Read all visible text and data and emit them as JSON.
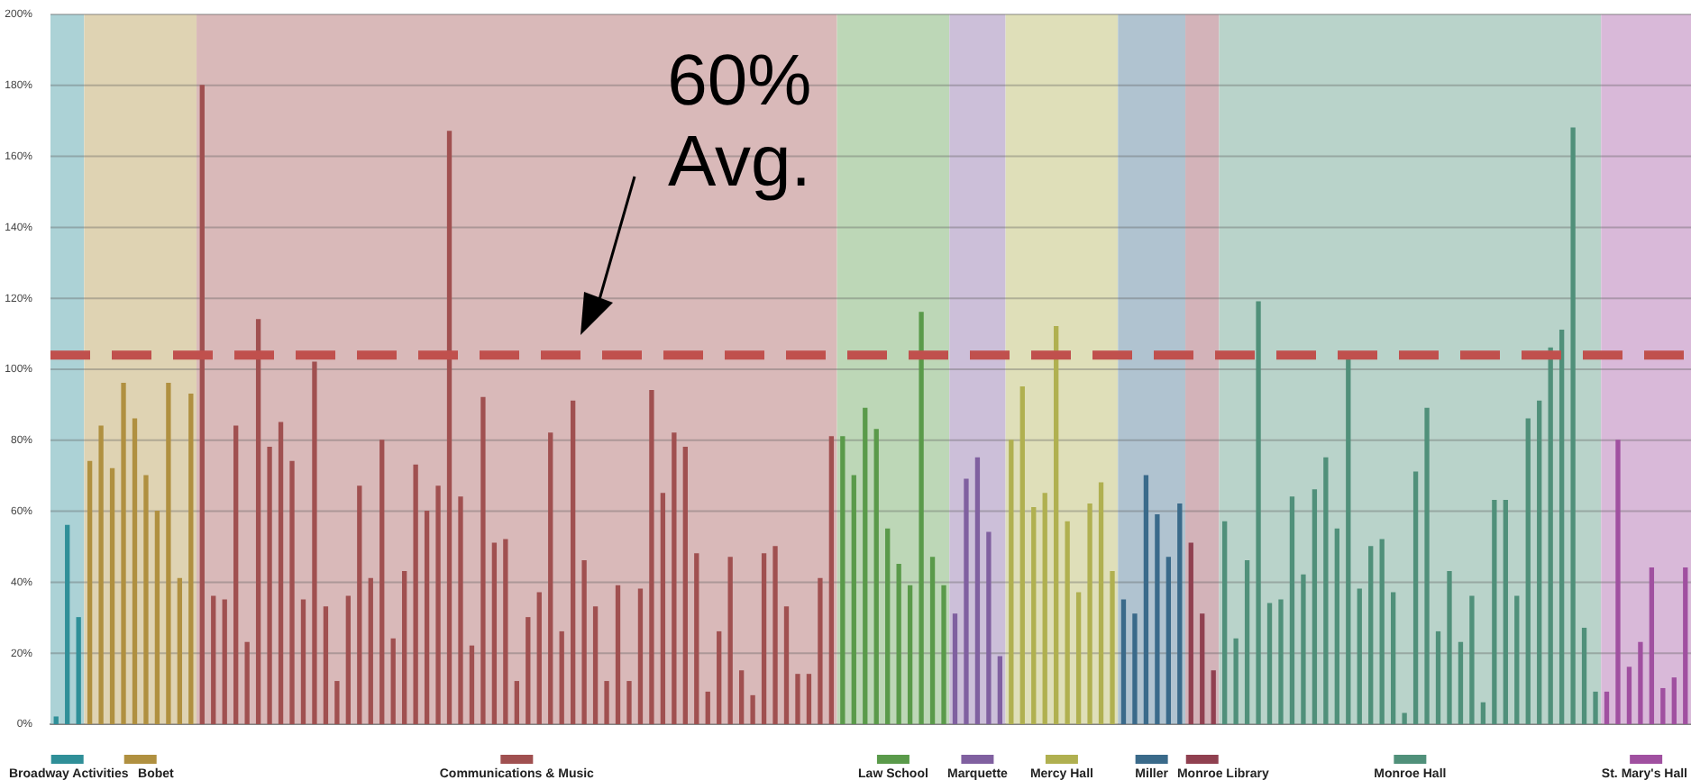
{
  "chart_data": {
    "type": "bar",
    "categories": [
      null,
      null,
      null,
      null,
      null,
      null,
      null,
      null,
      null,
      null,
      null,
      null,
      null,
      null,
      null,
      null,
      null,
      null,
      null,
      null,
      null,
      null,
      null,
      null,
      null,
      null,
      null,
      null,
      null,
      null,
      null,
      null,
      null,
      null,
      null,
      null,
      null,
      null,
      null,
      null,
      null,
      null,
      null,
      null,
      null,
      null,
      null,
      null,
      null,
      null,
      null,
      null,
      null,
      null,
      null,
      null,
      null,
      null,
      null,
      null,
      null,
      null,
      null,
      null,
      null,
      null,
      null,
      null,
      null,
      null,
      null,
      null,
      null,
      null,
      null,
      null,
      null,
      null,
      null,
      null,
      null,
      null,
      null,
      null,
      null,
      null,
      null,
      null,
      null,
      null,
      null,
      null,
      null,
      null,
      null,
      null,
      null,
      null,
      null,
      null,
      null,
      null,
      null,
      null,
      null,
      null,
      null,
      null,
      null,
      null,
      null,
      null,
      null,
      null,
      null,
      null,
      null,
      null,
      null,
      null,
      null,
      null,
      null,
      null,
      null,
      null,
      null,
      null,
      null,
      null,
      null,
      null,
      null,
      null,
      null,
      null,
      null,
      null,
      null,
      null,
      null,
      null,
      null,
      null,
      null,
      null
    ],
    "stacked": true,
    "legend": "bottom",
    "series": [
      {
        "name": "Broadway Activities",
        "color": "#2f8f98",
        "values": [
          2,
          56,
          30,
          null,
          null,
          null,
          null,
          null,
          null,
          null,
          null,
          null,
          null,
          null,
          null,
          null,
          null,
          null,
          null,
          null,
          null,
          null,
          null,
          null,
          null,
          null,
          null,
          null,
          null,
          null,
          null,
          null,
          null,
          null,
          null,
          null,
          null,
          null,
          null,
          null,
          null,
          null,
          null,
          null,
          null,
          null,
          null,
          null,
          null,
          null,
          null,
          null,
          null,
          null,
          null,
          null,
          null,
          null,
          null,
          null,
          null,
          null,
          null,
          null,
          null,
          null,
          null,
          null,
          null,
          null,
          null,
          null,
          null,
          null,
          null,
          null,
          null,
          null,
          null,
          null,
          null,
          null,
          null,
          null,
          null,
          null,
          null,
          null,
          null,
          null,
          null,
          null,
          null,
          null,
          null,
          null,
          null,
          null,
          null,
          null,
          null,
          null,
          null,
          null,
          null,
          null,
          null,
          null,
          null,
          null,
          null,
          null,
          null,
          null,
          null,
          null,
          null,
          null,
          null,
          null,
          null,
          null,
          null,
          null,
          null,
          null,
          null,
          null,
          null,
          null,
          null,
          null,
          null,
          null,
          null,
          null,
          null,
          null,
          null,
          null,
          null,
          null,
          null,
          null,
          null,
          null
        ]
      },
      {
        "name": "Bobet",
        "color": "#b09040",
        "values": [
          null,
          null,
          null,
          74,
          84,
          72,
          96,
          86,
          70,
          60,
          96,
          41,
          93,
          null,
          null,
          null,
          null,
          null,
          null,
          null,
          null,
          null,
          null,
          null,
          null,
          null,
          null,
          null,
          null,
          null,
          null,
          null,
          null,
          null,
          null,
          null,
          null,
          null,
          null,
          null,
          null,
          null,
          null,
          null,
          null,
          null,
          null,
          null,
          null,
          null,
          null,
          null,
          null,
          null,
          null,
          null,
          null,
          null,
          null,
          null,
          null,
          null,
          null,
          null,
          null,
          null,
          null,
          null,
          null,
          null,
          null,
          null,
          null,
          null,
          null,
          null,
          null,
          null,
          null,
          null,
          null,
          null,
          null,
          null,
          null,
          null,
          null,
          null,
          null,
          null,
          null,
          null,
          null,
          null,
          null,
          null,
          null,
          null,
          null,
          null,
          null,
          null,
          null,
          null,
          null,
          null,
          null,
          null,
          null,
          null,
          null,
          null,
          null,
          null,
          null,
          null,
          null,
          null,
          null,
          null,
          null,
          null,
          null,
          null,
          null,
          null,
          null,
          null,
          null,
          null,
          null,
          null,
          null,
          null,
          null,
          null,
          null,
          null,
          null,
          null,
          null,
          null,
          null,
          null,
          null,
          null
        ]
      },
      {
        "name": "Communications & Music",
        "color": "#a05050",
        "values": [
          null,
          null,
          null,
          null,
          null,
          null,
          null,
          null,
          null,
          null,
          null,
          null,
          null,
          180,
          36,
          35,
          84,
          23,
          114,
          78,
          85,
          74,
          35,
          102,
          33,
          12,
          36,
          67,
          41,
          80,
          24,
          43,
          73,
          60,
          67,
          167,
          64,
          22,
          92,
          51,
          52,
          12,
          30,
          37,
          82,
          26,
          91,
          46,
          33,
          12,
          39,
          12,
          38,
          94,
          65,
          82,
          78,
          48,
          9,
          26,
          47,
          15,
          8,
          48,
          50,
          33,
          14,
          14,
          41,
          81,
          null,
          null,
          null,
          null,
          null,
          null,
          null,
          null,
          null,
          null,
          null,
          null,
          null,
          null,
          null,
          null,
          null,
          null,
          null,
          null,
          null,
          null,
          null,
          null,
          null,
          null,
          null,
          null,
          null,
          null,
          null,
          null,
          null,
          null,
          null,
          null,
          null,
          null,
          null,
          null,
          null,
          null,
          null,
          null,
          null,
          null,
          null,
          null,
          null,
          null,
          null,
          null,
          null,
          null,
          null,
          null,
          null,
          null,
          null,
          null,
          null,
          null,
          null,
          null,
          null,
          null,
          null,
          null,
          null,
          null,
          null,
          null,
          null,
          null,
          null,
          null
        ]
      },
      {
        "name": "Law School",
        "color": "#5a9a4a",
        "values": [
          null,
          null,
          null,
          null,
          null,
          null,
          null,
          null,
          null,
          null,
          null,
          null,
          null,
          null,
          null,
          null,
          null,
          null,
          null,
          null,
          null,
          null,
          null,
          null,
          null,
          null,
          null,
          null,
          null,
          null,
          null,
          null,
          null,
          null,
          null,
          null,
          null,
          null,
          null,
          null,
          null,
          null,
          null,
          null,
          null,
          null,
          null,
          null,
          null,
          null,
          null,
          null,
          null,
          null,
          null,
          null,
          null,
          null,
          null,
          null,
          null,
          null,
          null,
          null,
          null,
          null,
          null,
          null,
          null,
          null,
          81,
          70,
          89,
          83,
          55,
          45,
          39,
          116,
          47,
          39,
          null,
          null,
          null,
          null,
          null,
          null,
          null,
          null,
          null,
          null,
          null,
          null,
          null,
          null,
          null,
          null,
          null,
          null,
          null,
          null,
          null,
          null,
          null,
          null,
          null,
          null,
          null,
          null,
          null,
          null,
          null,
          null,
          null,
          null,
          null,
          null,
          null,
          null,
          null,
          null,
          null,
          null,
          null,
          null,
          null,
          null,
          null,
          null,
          null,
          null,
          null,
          null,
          null,
          null,
          null,
          null,
          null,
          null,
          null,
          null,
          null,
          null,
          null,
          null,
          null,
          null
        ]
      },
      {
        "name": "Marquette",
        "color": "#8060a0",
        "values": [
          null,
          null,
          null,
          null,
          null,
          null,
          null,
          null,
          null,
          null,
          null,
          null,
          null,
          null,
          null,
          null,
          null,
          null,
          null,
          null,
          null,
          null,
          null,
          null,
          null,
          null,
          null,
          null,
          null,
          null,
          null,
          null,
          null,
          null,
          null,
          null,
          null,
          null,
          null,
          null,
          null,
          null,
          null,
          null,
          null,
          null,
          null,
          null,
          null,
          null,
          null,
          null,
          null,
          null,
          null,
          null,
          null,
          null,
          null,
          null,
          null,
          null,
          null,
          null,
          null,
          null,
          null,
          null,
          null,
          null,
          null,
          null,
          null,
          null,
          null,
          null,
          null,
          null,
          null,
          null,
          31,
          69,
          75,
          54,
          19,
          null,
          null,
          null,
          null,
          null,
          null,
          null,
          null,
          null,
          null,
          null,
          null,
          null,
          null,
          null,
          null,
          null,
          null,
          null,
          null,
          null,
          null,
          null,
          null,
          null,
          null,
          null,
          null,
          null,
          null,
          null,
          null,
          null,
          null,
          null,
          null,
          null,
          null,
          null,
          null,
          null,
          null,
          null,
          null,
          null,
          null,
          null,
          null,
          null,
          null,
          null,
          null,
          null,
          null,
          null,
          null,
          null,
          null,
          null,
          null,
          null
        ]
      },
      {
        "name": "Mercy Hall",
        "color": "#b0b050",
        "values": [
          null,
          null,
          null,
          null,
          null,
          null,
          null,
          null,
          null,
          null,
          null,
          null,
          null,
          null,
          null,
          null,
          null,
          null,
          null,
          null,
          null,
          null,
          null,
          null,
          null,
          null,
          null,
          null,
          null,
          null,
          null,
          null,
          null,
          null,
          null,
          null,
          null,
          null,
          null,
          null,
          null,
          null,
          null,
          null,
          null,
          null,
          null,
          null,
          null,
          null,
          null,
          null,
          null,
          null,
          null,
          null,
          null,
          null,
          null,
          null,
          null,
          null,
          null,
          null,
          null,
          null,
          null,
          null,
          null,
          null,
          null,
          null,
          null,
          null,
          null,
          null,
          null,
          null,
          null,
          null,
          null,
          null,
          null,
          null,
          null,
          80,
          95,
          61,
          65,
          112,
          57,
          37,
          62,
          68,
          43,
          null,
          null,
          null,
          null,
          null,
          null,
          null,
          null,
          null,
          null,
          null,
          null,
          null,
          null,
          null,
          null,
          null,
          null,
          null,
          null,
          null,
          null,
          null,
          null,
          null,
          null,
          null,
          null,
          null,
          null,
          null,
          null,
          null,
          null,
          null,
          null,
          null,
          null,
          null,
          null,
          null,
          null,
          null,
          null,
          null,
          null,
          null,
          null,
          null,
          null,
          null
        ]
      },
      {
        "name": "Miller",
        "color": "#3a6a8a",
        "values": [
          null,
          null,
          null,
          null,
          null,
          null,
          null,
          null,
          null,
          null,
          null,
          null,
          null,
          null,
          null,
          null,
          null,
          null,
          null,
          null,
          null,
          null,
          null,
          null,
          null,
          null,
          null,
          null,
          null,
          null,
          null,
          null,
          null,
          null,
          null,
          null,
          null,
          null,
          null,
          null,
          null,
          null,
          null,
          null,
          null,
          null,
          null,
          null,
          null,
          null,
          null,
          null,
          null,
          null,
          null,
          null,
          null,
          null,
          null,
          null,
          null,
          null,
          null,
          null,
          null,
          null,
          null,
          null,
          null,
          null,
          null,
          null,
          null,
          null,
          null,
          null,
          null,
          null,
          null,
          null,
          null,
          null,
          null,
          null,
          null,
          null,
          null,
          null,
          null,
          null,
          null,
          null,
          null,
          null,
          null,
          35,
          31,
          70,
          59,
          47,
          62,
          null,
          null,
          null,
          null,
          null,
          null,
          null,
          null,
          null,
          null,
          null,
          null,
          null,
          null,
          null,
          null,
          null,
          null,
          null,
          null,
          null,
          null,
          null,
          null,
          null,
          null,
          null,
          null,
          null,
          null,
          null,
          null,
          null,
          null,
          null,
          null,
          null,
          null,
          null,
          null,
          null,
          null,
          null,
          null,
          null
        ]
      },
      {
        "name": "Monroe Library",
        "color": "#904050",
        "values": [
          null,
          null,
          null,
          null,
          null,
          null,
          null,
          null,
          null,
          null,
          null,
          null,
          null,
          null,
          null,
          null,
          null,
          null,
          null,
          null,
          null,
          null,
          null,
          null,
          null,
          null,
          null,
          null,
          null,
          null,
          null,
          null,
          null,
          null,
          null,
          null,
          null,
          null,
          null,
          null,
          null,
          null,
          null,
          null,
          null,
          null,
          null,
          null,
          null,
          null,
          null,
          null,
          null,
          null,
          null,
          null,
          null,
          null,
          null,
          null,
          null,
          null,
          null,
          null,
          null,
          null,
          null,
          null,
          null,
          null,
          null,
          null,
          null,
          null,
          null,
          null,
          null,
          null,
          null,
          null,
          null,
          null,
          null,
          null,
          null,
          null,
          null,
          null,
          null,
          null,
          null,
          null,
          null,
          null,
          null,
          null,
          null,
          null,
          null,
          null,
          null,
          51,
          31,
          15,
          null,
          null,
          null,
          null,
          null,
          null,
          null,
          null,
          null,
          null,
          null,
          null,
          null,
          null,
          null,
          null,
          null,
          null,
          null,
          null,
          null,
          null,
          null,
          null,
          null,
          null,
          null,
          null,
          null,
          null,
          null,
          null,
          null,
          null,
          null,
          null,
          null,
          null,
          null,
          null,
          null,
          null
        ]
      },
      {
        "name": "Monroe Hall",
        "color": "#50907a",
        "values": [
          null,
          null,
          null,
          null,
          null,
          null,
          null,
          null,
          null,
          null,
          null,
          null,
          null,
          null,
          null,
          null,
          null,
          null,
          null,
          null,
          null,
          null,
          null,
          null,
          null,
          null,
          null,
          null,
          null,
          null,
          null,
          null,
          null,
          null,
          null,
          null,
          null,
          null,
          null,
          null,
          null,
          null,
          null,
          null,
          null,
          null,
          null,
          null,
          null,
          null,
          null,
          null,
          null,
          null,
          null,
          null,
          null,
          null,
          null,
          null,
          null,
          null,
          null,
          null,
          null,
          null,
          null,
          null,
          null,
          null,
          null,
          null,
          null,
          null,
          null,
          null,
          null,
          null,
          null,
          null,
          null,
          null,
          null,
          null,
          null,
          null,
          null,
          null,
          null,
          null,
          null,
          null,
          null,
          null,
          null,
          null,
          null,
          null,
          null,
          null,
          null,
          null,
          null,
          null,
          57,
          24,
          46,
          119,
          34,
          35,
          64,
          42,
          66,
          75,
          55,
          103,
          38,
          50,
          52,
          37,
          3,
          71,
          89,
          26,
          43,
          23,
          36,
          6,
          63,
          63,
          36,
          86,
          91,
          106,
          111,
          168,
          27,
          9,
          null,
          null,
          null,
          null,
          null,
          null,
          null,
          null
        ]
      },
      {
        "name": "St. Mary's Hall",
        "color": "#a050a0",
        "values": [
          null,
          null,
          null,
          null,
          null,
          null,
          null,
          null,
          null,
          null,
          null,
          null,
          null,
          null,
          null,
          null,
          null,
          null,
          null,
          null,
          null,
          null,
          null,
          null,
          null,
          null,
          null,
          null,
          null,
          null,
          null,
          null,
          null,
          null,
          null,
          null,
          null,
          null,
          null,
          null,
          null,
          null,
          null,
          null,
          null,
          null,
          null,
          null,
          null,
          null,
          null,
          null,
          null,
          null,
          null,
          null,
          null,
          null,
          null,
          null,
          null,
          null,
          null,
          null,
          null,
          null,
          null,
          null,
          null,
          null,
          null,
          null,
          null,
          null,
          null,
          null,
          null,
          null,
          null,
          null,
          null,
          null,
          null,
          null,
          null,
          null,
          null,
          null,
          null,
          null,
          null,
          null,
          null,
          null,
          null,
          null,
          null,
          null,
          null,
          null,
          null,
          null,
          null,
          null,
          null,
          null,
          null,
          null,
          null,
          null,
          null,
          null,
          null,
          null,
          null,
          null,
          null,
          null,
          null,
          null,
          null,
          null,
          null,
          null,
          null,
          null,
          null,
          null,
          null,
          null,
          null,
          null,
          null,
          null,
          null,
          null,
          null,
          null,
          9,
          80,
          16,
          23,
          44,
          10,
          13,
          44
        ]
      }
    ],
    "ylim": [
      0,
      200
    ],
    "yticks": [
      {
        "value": 0,
        "label": "0%"
      },
      {
        "value": 20,
        "label": "20%"
      },
      {
        "value": 40,
        "label": "40%"
      },
      {
        "value": 60,
        "label": "60%"
      },
      {
        "value": 80,
        "label": "80%"
      },
      {
        "value": 100,
        "label": "100%"
      },
      {
        "value": 120,
        "label": "120%"
      },
      {
        "value": 140,
        "label": "140%"
      },
      {
        "value": 160,
        "label": "160%"
      },
      {
        "value": 180,
        "label": "180%"
      },
      {
        "value": 200,
        "label": "200%"
      }
    ],
    "grid": "y",
    "ref_lines": [
      {
        "axis": "y",
        "value": 104,
        "label": "60% Avg.",
        "color": "#c0504d",
        "line_style": "dashed"
      }
    ]
  }
}
